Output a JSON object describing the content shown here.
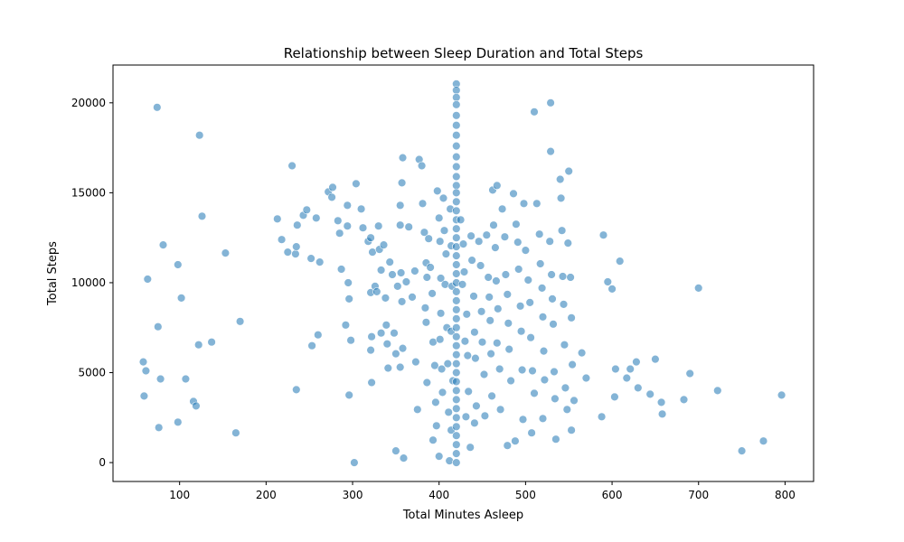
{
  "chart_data": {
    "type": "scatter",
    "title": "Relationship between Sleep Duration and Total Steps",
    "xlabel": "Total Minutes Asleep",
    "ylabel": "Total Steps",
    "xlim": [
      23,
      833
    ],
    "ylim": [
      -1050,
      22100
    ],
    "x_ticks": [
      100,
      200,
      300,
      400,
      500,
      600,
      700,
      800
    ],
    "y_ticks": [
      0,
      5000,
      10000,
      15000,
      20000
    ],
    "grid": false,
    "point_color": "#1f77b4",
    "point_edge_color": "#ffffff",
    "points": [
      [
        74,
        19750
      ],
      [
        123,
        18200
      ],
      [
        126,
        13700
      ],
      [
        81,
        12100
      ],
      [
        98,
        11000
      ],
      [
        63,
        10200
      ],
      [
        102,
        9150
      ],
      [
        75,
        7550
      ],
      [
        58,
        5600
      ],
      [
        61,
        5100
      ],
      [
        78,
        4650
      ],
      [
        59,
        3700
      ],
      [
        76,
        1950
      ],
      [
        98,
        2250
      ],
      [
        107,
        4650
      ],
      [
        116,
        3400
      ],
      [
        119,
        3150
      ],
      [
        122,
        6550
      ],
      [
        137,
        6700
      ],
      [
        153,
        11650
      ],
      [
        170,
        7850
      ],
      [
        165,
        1650
      ],
      [
        213,
        13550
      ],
      [
        218,
        12400
      ],
      [
        225,
        11700
      ],
      [
        230,
        16500
      ],
      [
        234,
        11600
      ],
      [
        235,
        12000
      ],
      [
        236,
        13200
      ],
      [
        243,
        13750
      ],
      [
        247,
        14050
      ],
      [
        252,
        11350
      ],
      [
        258,
        13600
      ],
      [
        262,
        11150
      ],
      [
        253,
        6500
      ],
      [
        260,
        7100
      ],
      [
        235,
        4050
      ],
      [
        272,
        15050
      ],
      [
        277,
        15300
      ],
      [
        283,
        13450
      ],
      [
        285,
        12750
      ],
      [
        276,
        14750
      ],
      [
        294,
        13150
      ],
      [
        294,
        14300
      ],
      [
        287,
        10750
      ],
      [
        295,
        10000
      ],
      [
        292,
        7650
      ],
      [
        296,
        9100
      ],
      [
        298,
        6800
      ],
      [
        296,
        3750
      ],
      [
        302,
        0
      ],
      [
        304,
        15500
      ],
      [
        310,
        14100
      ],
      [
        312,
        13050
      ],
      [
        318,
        12300
      ],
      [
        321,
        12500
      ],
      [
        323,
        11700
      ],
      [
        321,
        9450
      ],
      [
        326,
        9800
      ],
      [
        322,
        7000
      ],
      [
        321,
        6250
      ],
      [
        322,
        4450
      ],
      [
        330,
        13150
      ],
      [
        331,
        11850
      ],
      [
        333,
        10700
      ],
      [
        328,
        9500
      ],
      [
        333,
        7200
      ],
      [
        336,
        12100
      ],
      [
        338,
        9150
      ],
      [
        339,
        7650
      ],
      [
        340,
        6600
      ],
      [
        341,
        5250
      ],
      [
        343,
        11150
      ],
      [
        346,
        10450
      ],
      [
        348,
        7200
      ],
      [
        350,
        6050
      ],
      [
        352,
        9800
      ],
      [
        350,
        650
      ],
      [
        355,
        14300
      ],
      [
        357,
        15550
      ],
      [
        358,
        16950
      ],
      [
        355,
        13200
      ],
      [
        356,
        10550
      ],
      [
        357,
        8950
      ],
      [
        358,
        6350
      ],
      [
        355,
        5300
      ],
      [
        359,
        250
      ],
      [
        362,
        10050
      ],
      [
        365,
        13100
      ],
      [
        369,
        9200
      ],
      [
        372,
        10650
      ],
      [
        373,
        5600
      ],
      [
        375,
        2950
      ],
      [
        377,
        16850
      ],
      [
        380,
        16500
      ],
      [
        381,
        14400
      ],
      [
        383,
        12800
      ],
      [
        385,
        11100
      ],
      [
        386,
        10300
      ],
      [
        384,
        8600
      ],
      [
        385,
        7800
      ],
      [
        386,
        4450
      ],
      [
        388,
        12450
      ],
      [
        390,
        10850
      ],
      [
        392,
        9400
      ],
      [
        393,
        6700
      ],
      [
        395,
        5400
      ],
      [
        396,
        3350
      ],
      [
        397,
        2050
      ],
      [
        393,
        1250
      ],
      [
        398,
        15100
      ],
      [
        400,
        13600
      ],
      [
        401,
        12300
      ],
      [
        402,
        10250
      ],
      [
        402,
        8300
      ],
      [
        401,
        6850
      ],
      [
        403,
        5200
      ],
      [
        404,
        3900
      ],
      [
        400,
        350
      ],
      [
        405,
        14700
      ],
      [
        406,
        12900
      ],
      [
        408,
        11600
      ],
      [
        407,
        9900
      ],
      [
        409,
        7500
      ],
      [
        410,
        5500
      ],
      [
        411,
        2800
      ],
      [
        412,
        100
      ],
      [
        413,
        14100
      ],
      [
        414,
        12050
      ],
      [
        415,
        9800
      ],
      [
        414,
        7300
      ],
      [
        416,
        4550
      ],
      [
        414,
        1800
      ],
      [
        420,
        21050
      ],
      [
        420,
        20700
      ],
      [
        420,
        20300
      ],
      [
        420,
        19900
      ],
      [
        420,
        19300
      ],
      [
        420,
        18750
      ],
      [
        420,
        18200
      ],
      [
        420,
        17600
      ],
      [
        420,
        17000
      ],
      [
        420,
        16450
      ],
      [
        420,
        15900
      ],
      [
        420,
        15400
      ],
      [
        420,
        15000
      ],
      [
        420,
        14500
      ],
      [
        420,
        14000
      ],
      [
        420,
        13500
      ],
      [
        420,
        13000
      ],
      [
        420,
        12500
      ],
      [
        420,
        12000
      ],
      [
        420,
        11500
      ],
      [
        420,
        11000
      ],
      [
        420,
        10500
      ],
      [
        420,
        10000
      ],
      [
        420,
        9500
      ],
      [
        420,
        9000
      ],
      [
        420,
        8500
      ],
      [
        420,
        8000
      ],
      [
        420,
        7500
      ],
      [
        420,
        7000
      ],
      [
        420,
        6500
      ],
      [
        420,
        6000
      ],
      [
        420,
        5500
      ],
      [
        420,
        5000
      ],
      [
        420,
        4500
      ],
      [
        420,
        4000
      ],
      [
        420,
        3500
      ],
      [
        420,
        3000
      ],
      [
        420,
        2500
      ],
      [
        420,
        2000
      ],
      [
        420,
        1500
      ],
      [
        420,
        1000
      ],
      [
        420,
        500
      ],
      [
        420,
        0
      ],
      [
        425,
        13500
      ],
      [
        428,
        12150
      ],
      [
        429,
        10600
      ],
      [
        427,
        9900
      ],
      [
        432,
        8250
      ],
      [
        430,
        6750
      ],
      [
        433,
        5950
      ],
      [
        434,
        3950
      ],
      [
        431,
        2550
      ],
      [
        436,
        850
      ],
      [
        437,
        12600
      ],
      [
        438,
        11250
      ],
      [
        440,
        9250
      ],
      [
        441,
        7250
      ],
      [
        442,
        5800
      ],
      [
        443,
        3150
      ],
      [
        441,
        2200
      ],
      [
        446,
        12300
      ],
      [
        448,
        10950
      ],
      [
        449,
        8400
      ],
      [
        450,
        6700
      ],
      [
        452,
        4900
      ],
      [
        453,
        2600
      ],
      [
        455,
        12650
      ],
      [
        457,
        10300
      ],
      [
        458,
        9200
      ],
      [
        459,
        7900
      ],
      [
        460,
        6050
      ],
      [
        461,
        3700
      ],
      [
        463,
        13200
      ],
      [
        465,
        11950
      ],
      [
        466,
        10100
      ],
      [
        468,
        8550
      ],
      [
        467,
        6650
      ],
      [
        470,
        5200
      ],
      [
        471,
        2950
      ],
      [
        462,
        15150
      ],
      [
        467,
        15400
      ],
      [
        473,
        14100
      ],
      [
        476,
        12550
      ],
      [
        477,
        10450
      ],
      [
        479,
        9350
      ],
      [
        480,
        7750
      ],
      [
        481,
        6300
      ],
      [
        483,
        4550
      ],
      [
        479,
        950
      ],
      [
        486,
        14950
      ],
      [
        489,
        13250
      ],
      [
        491,
        12250
      ],
      [
        492,
        10750
      ],
      [
        494,
        8700
      ],
      [
        495,
        7300
      ],
      [
        496,
        5150
      ],
      [
        497,
        2400
      ],
      [
        488,
        1200
      ],
      [
        498,
        14400
      ],
      [
        500,
        11800
      ],
      [
        503,
        10150
      ],
      [
        505,
        8900
      ],
      [
        506,
        6950
      ],
      [
        508,
        5100
      ],
      [
        510,
        3850
      ],
      [
        507,
        1650
      ],
      [
        510,
        19500
      ],
      [
        513,
        14400
      ],
      [
        516,
        12700
      ],
      [
        517,
        11050
      ],
      [
        519,
        9700
      ],
      [
        520,
        8100
      ],
      [
        521,
        6200
      ],
      [
        522,
        4600
      ],
      [
        520,
        2450
      ],
      [
        529,
        20000
      ],
      [
        529,
        17300
      ],
      [
        528,
        12300
      ],
      [
        530,
        10450
      ],
      [
        531,
        9100
      ],
      [
        532,
        7700
      ],
      [
        533,
        5050
      ],
      [
        534,
        3550
      ],
      [
        535,
        1300
      ],
      [
        540,
        15750
      ],
      [
        541,
        14700
      ],
      [
        542,
        12900
      ],
      [
        543,
        10350
      ],
      [
        544,
        8800
      ],
      [
        545,
        6550
      ],
      [
        546,
        4150
      ],
      [
        548,
        2950
      ],
      [
        550,
        16200
      ],
      [
        549,
        12200
      ],
      [
        552,
        10300
      ],
      [
        553,
        8050
      ],
      [
        554,
        5450
      ],
      [
        556,
        3450
      ],
      [
        553,
        1800
      ],
      [
        565,
        6100
      ],
      [
        570,
        4700
      ],
      [
        588,
        2550
      ],
      [
        590,
        12650
      ],
      [
        595,
        10050
      ],
      [
        600,
        9650
      ],
      [
        603,
        3650
      ],
      [
        604,
        5200
      ],
      [
        609,
        11200
      ],
      [
        617,
        4700
      ],
      [
        621,
        5200
      ],
      [
        628,
        5600
      ],
      [
        630,
        4150
      ],
      [
        644,
        3800
      ],
      [
        650,
        5750
      ],
      [
        657,
        3350
      ],
      [
        658,
        2700
      ],
      [
        683,
        3500
      ],
      [
        690,
        4950
      ],
      [
        700,
        9700
      ],
      [
        722,
        4000
      ],
      [
        750,
        650
      ],
      [
        775,
        1200
      ],
      [
        796,
        3750
      ]
    ]
  }
}
